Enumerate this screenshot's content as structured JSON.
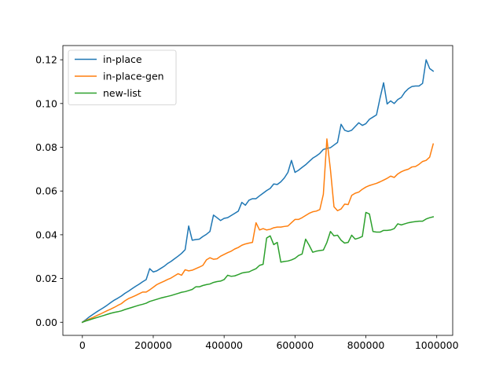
{
  "chart_data": {
    "type": "line",
    "title": "",
    "xlabel": "",
    "ylabel": "",
    "xlim": [
      -55000,
      1045000
    ],
    "ylim": [
      -0.006,
      0.1265
    ],
    "x_ticks": [
      0,
      200000,
      400000,
      600000,
      800000,
      1000000
    ],
    "x_tick_labels": [
      "0",
      "200000",
      "400000",
      "600000",
      "800000",
      "1000000"
    ],
    "y_ticks": [
      0.0,
      0.02,
      0.04,
      0.06,
      0.08,
      0.1,
      0.12
    ],
    "y_tick_labels": [
      "0.00",
      "0.02",
      "0.04",
      "0.06",
      "0.08",
      "0.10",
      "0.12"
    ],
    "grid": false,
    "legend_position": "top-left",
    "series": [
      {
        "name": "in-place",
        "color": "#1f77b4",
        "x": [
          0,
          10000,
          20000,
          30000,
          40000,
          50000,
          60000,
          70000,
          80000,
          90000,
          100000,
          110000,
          120000,
          130000,
          140000,
          150000,
          160000,
          170000,
          180000,
          190000,
          200000,
          210000,
          220000,
          230000,
          240000,
          250000,
          260000,
          270000,
          280000,
          290000,
          300000,
          310000,
          320000,
          330000,
          340000,
          350000,
          360000,
          370000,
          380000,
          390000,
          400000,
          410000,
          420000,
          430000,
          440000,
          450000,
          460000,
          470000,
          480000,
          490000,
          500000,
          510000,
          520000,
          530000,
          540000,
          550000,
          560000,
          570000,
          580000,
          590000,
          600000,
          610000,
          620000,
          630000,
          640000,
          650000,
          660000,
          670000,
          680000,
          690000,
          700000,
          710000,
          720000,
          730000,
          740000,
          750000,
          760000,
          770000,
          780000,
          790000,
          800000,
          810000,
          820000,
          830000,
          840000,
          850000,
          860000,
          870000,
          880000,
          890000,
          900000,
          910000,
          920000,
          930000,
          940000,
          950000,
          960000,
          970000,
          980000,
          990000
        ],
        "values": [
          0.0,
          0.0012,
          0.0025,
          0.0036,
          0.0047,
          0.0057,
          0.0067,
          0.0078,
          0.009,
          0.0101,
          0.011,
          0.012,
          0.0132,
          0.0142,
          0.0153,
          0.0164,
          0.0174,
          0.0185,
          0.0195,
          0.0245,
          0.023,
          0.0235,
          0.0245,
          0.0255,
          0.0268,
          0.0278,
          0.029,
          0.0302,
          0.0315,
          0.0332,
          0.044,
          0.0375,
          0.0378,
          0.038,
          0.0392,
          0.0402,
          0.0415,
          0.049,
          0.0478,
          0.0465,
          0.0475,
          0.0478,
          0.0488,
          0.0498,
          0.0508,
          0.0548,
          0.0535,
          0.0558,
          0.0565,
          0.0565,
          0.0578,
          0.059,
          0.0602,
          0.0612,
          0.0632,
          0.063,
          0.0642,
          0.066,
          0.0685,
          0.074,
          0.0685,
          0.0695,
          0.0708,
          0.072,
          0.0735,
          0.075,
          0.076,
          0.0772,
          0.079,
          0.0795,
          0.0798,
          0.081,
          0.0822,
          0.0905,
          0.0878,
          0.0872,
          0.0878,
          0.0895,
          0.0912,
          0.09,
          0.0908,
          0.0928,
          0.0938,
          0.0948,
          0.1025,
          0.1095,
          0.0998,
          0.1012,
          0.1,
          0.1018,
          0.1028,
          0.1052,
          0.1068,
          0.1078,
          0.108,
          0.108,
          0.1092,
          0.12,
          0.116,
          0.1148
        ]
      },
      {
        "name": "in-place-gen",
        "color": "#ff7f0e",
        "x": [
          0,
          10000,
          20000,
          30000,
          40000,
          50000,
          60000,
          70000,
          80000,
          90000,
          100000,
          110000,
          120000,
          130000,
          140000,
          150000,
          160000,
          170000,
          180000,
          190000,
          200000,
          210000,
          220000,
          230000,
          240000,
          250000,
          260000,
          270000,
          280000,
          290000,
          300000,
          310000,
          320000,
          330000,
          340000,
          350000,
          360000,
          370000,
          380000,
          390000,
          400000,
          410000,
          420000,
          430000,
          440000,
          450000,
          460000,
          470000,
          480000,
          490000,
          500000,
          510000,
          520000,
          530000,
          540000,
          550000,
          560000,
          570000,
          580000,
          590000,
          600000,
          610000,
          620000,
          630000,
          640000,
          650000,
          660000,
          670000,
          680000,
          690000,
          700000,
          710000,
          720000,
          730000,
          740000,
          750000,
          760000,
          770000,
          780000,
          790000,
          800000,
          810000,
          820000,
          830000,
          840000,
          850000,
          860000,
          870000,
          880000,
          890000,
          900000,
          910000,
          920000,
          930000,
          940000,
          950000,
          960000,
          970000,
          980000,
          990000
        ],
        "values": [
          0.0,
          0.0008,
          0.0015,
          0.0022,
          0.003,
          0.0037,
          0.0045,
          0.0053,
          0.006,
          0.0068,
          0.0077,
          0.0085,
          0.0098,
          0.0108,
          0.0115,
          0.0122,
          0.013,
          0.0138,
          0.0138,
          0.0148,
          0.016,
          0.0172,
          0.018,
          0.0187,
          0.0195,
          0.0202,
          0.0212,
          0.0222,
          0.0215,
          0.024,
          0.0235,
          0.0238,
          0.0245,
          0.0252,
          0.026,
          0.0285,
          0.0295,
          0.0288,
          0.029,
          0.0302,
          0.031,
          0.0318,
          0.0325,
          0.0335,
          0.0342,
          0.0352,
          0.0358,
          0.0362,
          0.0365,
          0.0455,
          0.0422,
          0.0428,
          0.0422,
          0.0425,
          0.0432,
          0.0435,
          0.0435,
          0.0438,
          0.044,
          0.0455,
          0.047,
          0.047,
          0.0478,
          0.0488,
          0.0498,
          0.0505,
          0.0508,
          0.0515,
          0.0585,
          0.0838,
          0.0698,
          0.0528,
          0.051,
          0.0518,
          0.054,
          0.0538,
          0.058,
          0.059,
          0.0595,
          0.0608,
          0.0618,
          0.0625,
          0.063,
          0.0635,
          0.0642,
          0.065,
          0.0658,
          0.0668,
          0.0662,
          0.0678,
          0.0688,
          0.0695,
          0.07,
          0.071,
          0.0712,
          0.0722,
          0.0735,
          0.074,
          0.0755,
          0.0815
        ]
      },
      {
        "name": "new-list",
        "color": "#2ca02c",
        "x": [
          0,
          10000,
          20000,
          30000,
          40000,
          50000,
          60000,
          70000,
          80000,
          90000,
          100000,
          110000,
          120000,
          130000,
          140000,
          150000,
          160000,
          170000,
          180000,
          190000,
          200000,
          210000,
          220000,
          230000,
          240000,
          250000,
          260000,
          270000,
          280000,
          290000,
          300000,
          310000,
          320000,
          330000,
          340000,
          350000,
          360000,
          370000,
          380000,
          390000,
          400000,
          410000,
          420000,
          430000,
          440000,
          450000,
          460000,
          470000,
          480000,
          490000,
          500000,
          510000,
          520000,
          530000,
          540000,
          550000,
          560000,
          570000,
          580000,
          590000,
          600000,
          610000,
          620000,
          630000,
          640000,
          650000,
          660000,
          670000,
          680000,
          690000,
          700000,
          710000,
          720000,
          730000,
          740000,
          750000,
          760000,
          770000,
          780000,
          790000,
          800000,
          810000,
          820000,
          830000,
          840000,
          850000,
          860000,
          870000,
          880000,
          890000,
          900000,
          910000,
          920000,
          930000,
          940000,
          950000,
          960000,
          970000,
          980000,
          990000
        ],
        "values": [
          0.0,
          0.0006,
          0.0011,
          0.0016,
          0.0021,
          0.0026,
          0.0031,
          0.0036,
          0.0041,
          0.0045,
          0.0048,
          0.0052,
          0.0058,
          0.0063,
          0.0068,
          0.0073,
          0.0078,
          0.0082,
          0.0087,
          0.0095,
          0.01,
          0.0105,
          0.011,
          0.0114,
          0.0118,
          0.0122,
          0.0127,
          0.0132,
          0.0137,
          0.014,
          0.0145,
          0.015,
          0.0162,
          0.0162,
          0.0168,
          0.0172,
          0.0175,
          0.0182,
          0.0186,
          0.0188,
          0.0195,
          0.0215,
          0.021,
          0.0212,
          0.0218,
          0.0225,
          0.0228,
          0.023,
          0.0238,
          0.0245,
          0.026,
          0.0265,
          0.0385,
          0.0395,
          0.0355,
          0.0365,
          0.0275,
          0.0278,
          0.028,
          0.0285,
          0.0292,
          0.0305,
          0.0312,
          0.038,
          0.0352,
          0.032,
          0.0325,
          0.0328,
          0.033,
          0.0365,
          0.0415,
          0.0395,
          0.0398,
          0.0375,
          0.0362,
          0.0365,
          0.0398,
          0.038,
          0.0385,
          0.0392,
          0.0502,
          0.0495,
          0.0415,
          0.0412,
          0.0412,
          0.042,
          0.042,
          0.0422,
          0.0428,
          0.045,
          0.0445,
          0.045,
          0.0455,
          0.0458,
          0.046,
          0.0462,
          0.0462,
          0.0472,
          0.0478,
          0.0482
        ]
      }
    ]
  }
}
